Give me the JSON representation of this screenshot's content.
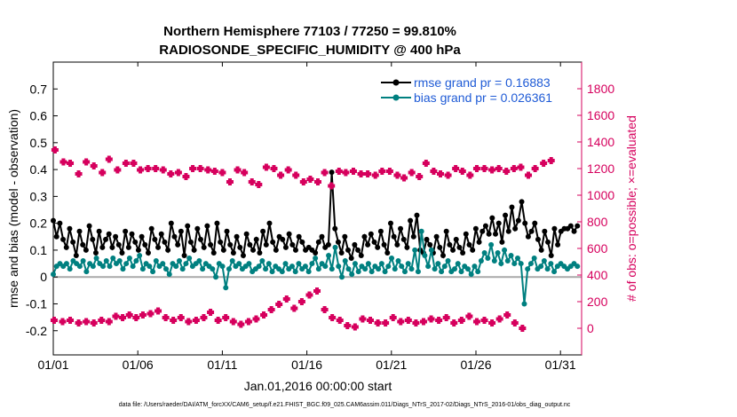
{
  "title_line1": "Northern Hemisphere 77103 / 77250 = 99.810%",
  "title_line2": "RADIOSONDE_SPECIFIC_HUMIDITY @ 400 hPa",
  "xlabel": "Jan.01,2016 00:00:00 start",
  "ylabel_left": "rmse and bias (model - observation)",
  "ylabel_right": "# of obs: o=possible; ×=evaluated",
  "footer": "data file: /Users/raeder/DAI/ATM_forcXX/CAM6_setup/f.e21.FHIST_BGC.f09_025.CAM6assim.011/Diags_NTrS_2017-02/Diags_NTrS_2016-01/obs_diag_output.nc",
  "legend": {
    "rmse": "rmse grand pr = 0.16883",
    "bias": "bias grand pr = 0.026361"
  },
  "colors": {
    "rmse": "#000000",
    "bias": "#008080",
    "obs": "#d6005d",
    "zero_line": "#aaaaaa",
    "legend_text": "#1f5bd6"
  },
  "chart_data": {
    "type": "line",
    "x_ticks": [
      "01/01",
      "01/06",
      "01/11",
      "01/16",
      "01/21",
      "01/26",
      "01/31"
    ],
    "x_tick_days": [
      1,
      6,
      11,
      16,
      21,
      26,
      31
    ],
    "x_range_days": [
      1,
      32.25
    ],
    "y_left_ticks": [
      "-0.2",
      "-0.1",
      "0",
      "0.1",
      "0.2",
      "0.3",
      "0.4",
      "0.5",
      "0.6",
      "0.7"
    ],
    "y_left_range": [
      -0.29,
      0.8
    ],
    "y_right_ticks": [
      "0",
      "200",
      "400",
      "600",
      "800",
      "1000",
      "1200",
      "1400",
      "1600",
      "1800"
    ],
    "y_right_range": [
      -200,
      2000
    ],
    "series": [
      {
        "name": "rmse grand pr = 0.16883",
        "axis": "left",
        "marker": "dot",
        "values": [
          0.21,
          0.15,
          0.2,
          0.14,
          0.11,
          0.18,
          0.13,
          0.08,
          0.17,
          0.12,
          0.1,
          0.19,
          0.14,
          0.09,
          0.17,
          0.11,
          0.14,
          0.16,
          0.11,
          0.15,
          0.12,
          0.09,
          0.17,
          0.11,
          0.16,
          0.13,
          0.1,
          0.15,
          0.12,
          0.09,
          0.18,
          0.14,
          0.11,
          0.16,
          0.13,
          0.1,
          0.2,
          0.15,
          0.12,
          0.17,
          0.08,
          0.19,
          0.13,
          0.1,
          0.18,
          0.14,
          0.11,
          0.19,
          0.12,
          0.09,
          0.2,
          0.13,
          0.1,
          0.17,
          0.12,
          0.09,
          0.15,
          0.11,
          0.08,
          0.16,
          0.12,
          0.1,
          0.14,
          0.09,
          0.17,
          0.12,
          0.2,
          0.13,
          0.1,
          0.15,
          0.14,
          0.11,
          0.16,
          0.12,
          0.1,
          0.15,
          0.13,
          0.1,
          0.11,
          0.1,
          0.09,
          0.13,
          0.15,
          0.11,
          0.12,
          0.39,
          0.18,
          0.13,
          0.09,
          0.15,
          0.1,
          0.07,
          0.12,
          0.1,
          0.08,
          0.15,
          0.12,
          0.16,
          0.13,
          0.11,
          0.17,
          0.12,
          0.09,
          0.2,
          0.15,
          0.12,
          0.18,
          0.14,
          0.11,
          0.21,
          0.15,
          0.23,
          0.1,
          0.09,
          0.14,
          0.12,
          0.09,
          0.15,
          0.11,
          0.08,
          0.17,
          0.12,
          0.1,
          0.14,
          0.11,
          0.09,
          0.16,
          0.12,
          0.1,
          0.18,
          0.13,
          0.17,
          0.19,
          0.16,
          0.22,
          0.16,
          0.2,
          0.13,
          0.23,
          0.17,
          0.26,
          0.18,
          0.21,
          0.28,
          0.2,
          0.15,
          0.17,
          0.2,
          0.14,
          0.1,
          0.17,
          0.13,
          0.08,
          0.18,
          0.12,
          0.17,
          0.18,
          0.18,
          0.19,
          0.17,
          0.19
        ]
      },
      {
        "name": "bias grand pr = 0.026361",
        "axis": "left",
        "marker": "dot",
        "values": [
          0.01,
          0.04,
          0.05,
          0.04,
          0.05,
          0.03,
          0.06,
          0.05,
          0.04,
          0.06,
          0.02,
          0.05,
          0.04,
          0.07,
          0.05,
          0.04,
          0.06,
          0.04,
          0.07,
          0.05,
          0.06,
          0.03,
          0.05,
          0.07,
          0.04,
          0.06,
          0.08,
          0.03,
          0.05,
          0.04,
          0.02,
          0.06,
          0.04,
          0.05,
          0.03,
          0.01,
          0.05,
          0.04,
          0.06,
          0.03,
          0.05,
          0.07,
          0.04,
          0.05,
          0.06,
          0.03,
          0.05,
          0.04,
          0.03,
          0.0,
          0.05,
          0.04,
          -0.04,
          0.03,
          0.06,
          0.04,
          0.05,
          0.03,
          0.04,
          0.05,
          0.02,
          0.03,
          0.04,
          0.06,
          0.03,
          0.05,
          0.02,
          0.04,
          0.03,
          0.02,
          0.05,
          0.03,
          0.04,
          0.02,
          0.05,
          0.03,
          0.04,
          0.02,
          0.05,
          0.07,
          0.03,
          0.05,
          0.04,
          0.08,
          0.03,
          0.11,
          0.04,
          0.0,
          0.06,
          0.03,
          0.01,
          0.05,
          0.02,
          0.04,
          0.03,
          0.05,
          0.02,
          0.04,
          0.03,
          0.05,
          0.02,
          0.04,
          0.07,
          0.03,
          0.06,
          0.04,
          0.02,
          0.05,
          0.03,
          0.1,
          0.02,
          0.17,
          0.08,
          0.04,
          0.1,
          0.03,
          0.05,
          0.02,
          0.04,
          0.06,
          0.02,
          0.03,
          0.05,
          0.02,
          0.04,
          0.03,
          0.01,
          0.04,
          0.02,
          0.06,
          0.09,
          0.07,
          0.12,
          0.06,
          0.09,
          0.05,
          0.1,
          0.06,
          0.08,
          0.05,
          0.07,
          0.05,
          -0.1,
          0.03,
          0.05,
          0.07,
          0.03,
          0.04,
          0.06,
          0.03,
          0.05,
          0.02,
          0.04,
          0.05,
          0.04,
          0.03,
          0.04,
          0.05,
          0.04
        ]
      },
      {
        "name": "",
        "axis": "right",
        "marker": "plus",
        "connect": false,
        "values": [
          1340,
          1250,
          1240,
          1160,
          1250,
          1220,
          1170,
          1270,
          1190,
          1240,
          1240,
          1190,
          1200,
          1200,
          1190,
          1160,
          1170,
          1140,
          1200,
          1200,
          1190,
          1180,
          1170,
          1100,
          1190,
          1170,
          1100,
          1080,
          1210,
          1200,
          1150,
          1190,
          1150,
          1100,
          1120,
          1100,
          1170,
          1070,
          1180,
          1170,
          1180,
          1160,
          1160,
          1150,
          1180,
          1180,
          1150,
          1130,
          1170,
          1140,
          1240,
          1180,
          1160,
          1150,
          1200,
          1180,
          1150,
          1200,
          1200,
          1190,
          1200,
          1180,
          1200,
          1210,
          1150,
          1200,
          1240,
          1260
        ],
        "x_days": [
          1.1,
          1.6,
          2.0,
          2.5,
          2.95,
          3.4,
          3.9,
          4.3,
          4.8,
          5.3,
          5.75,
          6.15,
          6.6,
          7.05,
          7.5,
          7.95,
          8.4,
          8.85,
          9.25,
          9.7,
          10.15,
          10.55,
          11.0,
          11.45,
          11.9,
          12.3,
          12.75,
          13.15,
          13.6,
          14.05,
          14.45,
          14.9,
          15.35,
          15.8,
          16.2,
          16.65,
          17.05,
          17.45,
          17.9,
          18.3,
          18.75,
          19.2,
          19.6,
          20.05,
          20.45,
          20.9,
          21.35,
          21.75,
          22.2,
          22.65,
          23.05,
          23.5,
          23.9,
          24.35,
          24.8,
          25.2,
          25.65,
          26.05,
          26.5,
          26.95,
          27.35,
          27.8,
          28.25,
          28.65,
          29.1,
          29.5,
          30.0,
          30.45
        ]
      },
      {
        "name": "",
        "axis": "right",
        "marker": "plus",
        "connect": false,
        "values": [
          60,
          50,
          60,
          40,
          50,
          40,
          60,
          50,
          90,
          80,
          100,
          80,
          100,
          110,
          130,
          80,
          60,
          80,
          50,
          60,
          80,
          120,
          60,
          80,
          50,
          30,
          50,
          70,
          100,
          140,
          180,
          220,
          150,
          200,
          250,
          280,
          140,
          80,
          60,
          20,
          10,
          70,
          60,
          40,
          40,
          80,
          50,
          60,
          40,
          50,
          70,
          60,
          80,
          40,
          60,
          90,
          50,
          60,
          40,
          70,
          100,
          40,
          0
        ],
        "x_days": [
          1.05,
          1.55,
          2.0,
          2.5,
          2.95,
          3.4,
          3.85,
          4.3,
          4.7,
          5.1,
          5.5,
          5.9,
          6.3,
          6.75,
          7.2,
          7.65,
          8.1,
          8.55,
          9.0,
          9.45,
          9.9,
          10.3,
          10.75,
          11.2,
          11.65,
          12.1,
          12.55,
          13.0,
          13.45,
          13.9,
          14.35,
          14.8,
          15.25,
          15.7,
          16.15,
          16.6,
          17.05,
          17.5,
          17.95,
          18.4,
          18.85,
          19.3,
          19.75,
          20.2,
          20.65,
          21.1,
          21.55,
          22.0,
          22.45,
          22.9,
          23.35,
          23.8,
          24.25,
          24.7,
          25.15,
          25.6,
          26.05,
          26.5,
          26.95,
          27.4,
          27.85,
          28.3,
          28.75
        ]
      }
    ]
  }
}
